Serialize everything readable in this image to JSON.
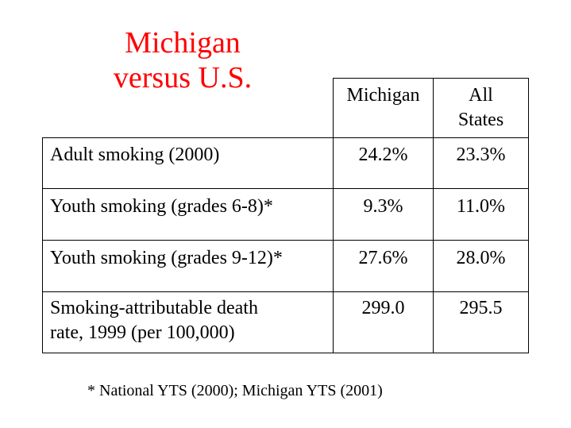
{
  "title": {
    "line1": "Michigan",
    "line2": "versus U.S.",
    "color": "#ff0000"
  },
  "table": {
    "columns": {
      "michigan": "Michigan",
      "all_states_line1": "All",
      "all_states_line2": "States"
    },
    "rows": [
      {
        "label": "Adult smoking (2000)",
        "michigan": "24.2%",
        "all_states": "23.3%"
      },
      {
        "label": "Youth smoking (grades 6-8)*",
        "michigan": "9.3%",
        "all_states": "11.0%"
      },
      {
        "label": "Youth smoking (grades 9-12)*",
        "michigan": "27.6%",
        "all_states": "28.0%"
      },
      {
        "label_line1": "Smoking-attributable death",
        "label_line2": "rate, 1999 (per 100,000)",
        "michigan": "299.0",
        "all_states": "295.5"
      }
    ]
  },
  "footnote": "* National YTS (2000); Michigan YTS (2001)"
}
